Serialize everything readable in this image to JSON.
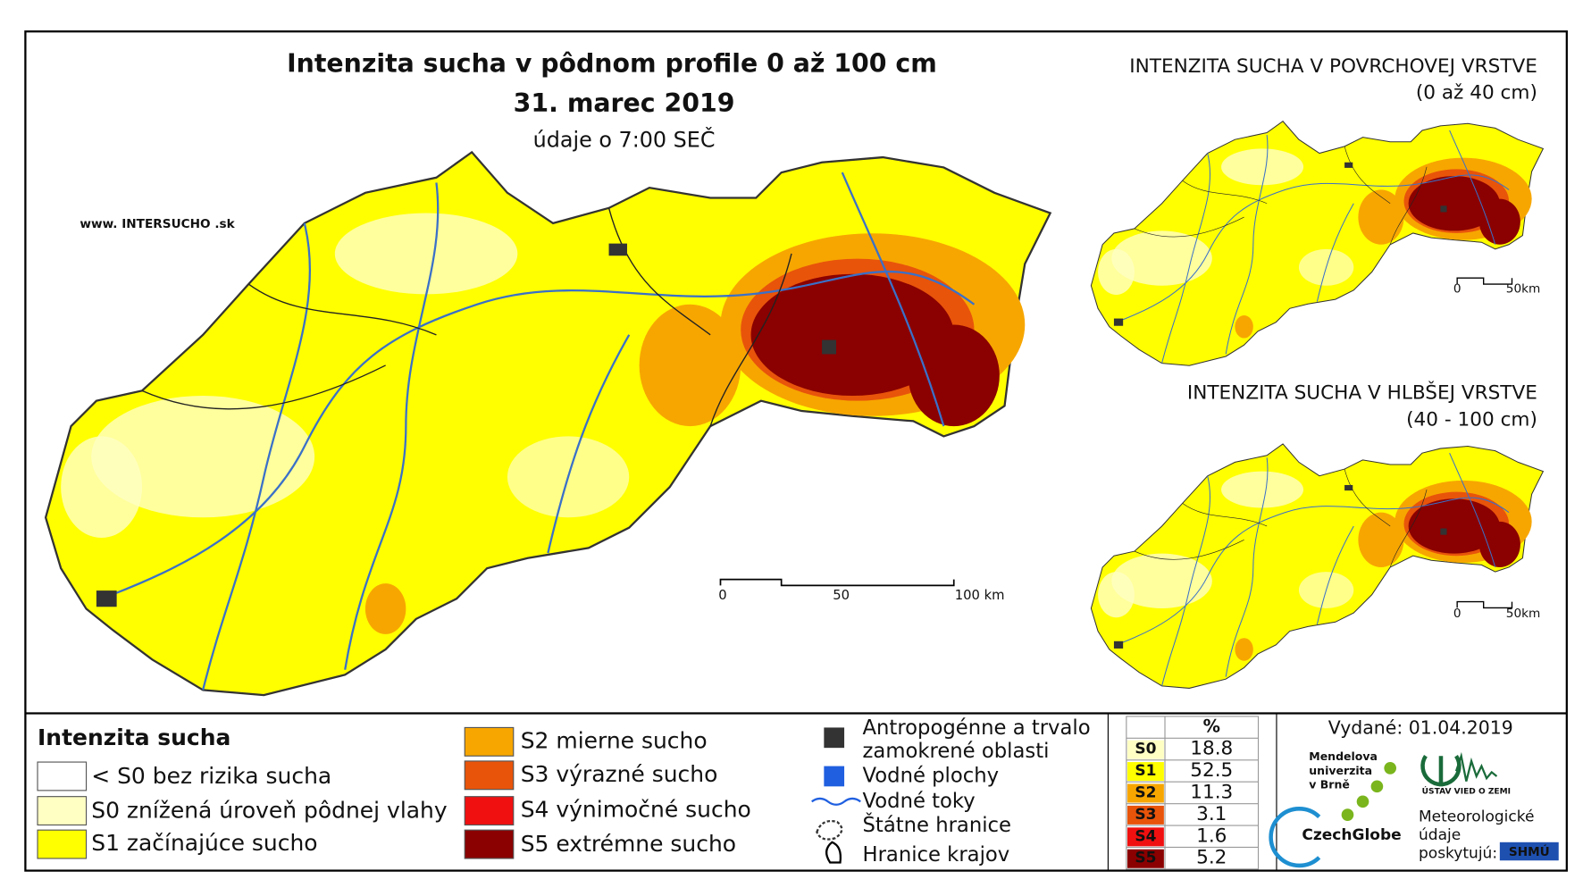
{
  "title": "Intenzita sucha v pôdnom profile 0 až 100 cm",
  "date": "31. marec 2019",
  "time_note": "údaje o 7:00 SEČ",
  "website": "www. INTERSUCHO .sk",
  "main_scale": [
    "0",
    "50",
    "100 km"
  ],
  "insets": [
    {
      "title": "INTENZITA SUCHA V POVRCHOVEJ VRSTVE",
      "subtitle": "(0 až 40 cm)",
      "scale": [
        "0",
        "50km"
      ]
    },
    {
      "title": "INTENZITA SUCHA V HLBŠEJ VRSTVE",
      "subtitle": "(40 - 100 cm)",
      "scale": [
        "0",
        "50km"
      ]
    }
  ],
  "legend": {
    "title": "Intenzita sucha",
    "classes": [
      {
        "label": "< S0 bez rizika sucha",
        "color": "#ffffff"
      },
      {
        "label": "S0 znížená úroveň pôdnej vlahy",
        "color": "#ffffc4"
      },
      {
        "label": "S1 začínajúce sucho",
        "color": "#ffff00"
      },
      {
        "label": "S2 mierne sucho",
        "color": "#f7a600"
      },
      {
        "label": "S3 výrazné sucho",
        "color": "#e8540a"
      },
      {
        "label": "S4 výnimočné sucho",
        "color": "#f01010"
      },
      {
        "label": "S5 extrémne sucho",
        "color": "#8b0000"
      }
    ]
  },
  "overlay_legend": [
    [
      "Antropogénne a trvalo",
      "zamokrené oblasti"
    ],
    [
      "Vodné plochy"
    ],
    [
      "Vodné toky"
    ],
    [
      "Štátne hranice"
    ],
    [
      "Hranice krajov"
    ]
  ],
  "share_table": {
    "header": "%",
    "rows": [
      {
        "class": "S0",
        "value": 18.8,
        "color": "#ffffc4"
      },
      {
        "class": "S1",
        "value": 52.5,
        "color": "#ffff00"
      },
      {
        "class": "S2",
        "value": 11.3,
        "color": "#f7a600"
      },
      {
        "class": "S3",
        "value": 3.1,
        "color": "#e8540a"
      },
      {
        "class": "S4",
        "value": 1.6,
        "color": "#f01010"
      },
      {
        "class": "S5",
        "value": 5.2,
        "color": "#8b0000"
      }
    ]
  },
  "issued": "Vydané: 01.04.2019",
  "logos": {
    "mendel": [
      "Mendelova",
      "univerzita",
      "v Brně"
    ],
    "czechglobe": "CzechGlobe",
    "uvz": "ÚSTAV VIED O ZEMI",
    "meteo": [
      "Meteorologické",
      "údaje",
      "poskytujú:"
    ],
    "shmu": "SHMÚ"
  }
}
